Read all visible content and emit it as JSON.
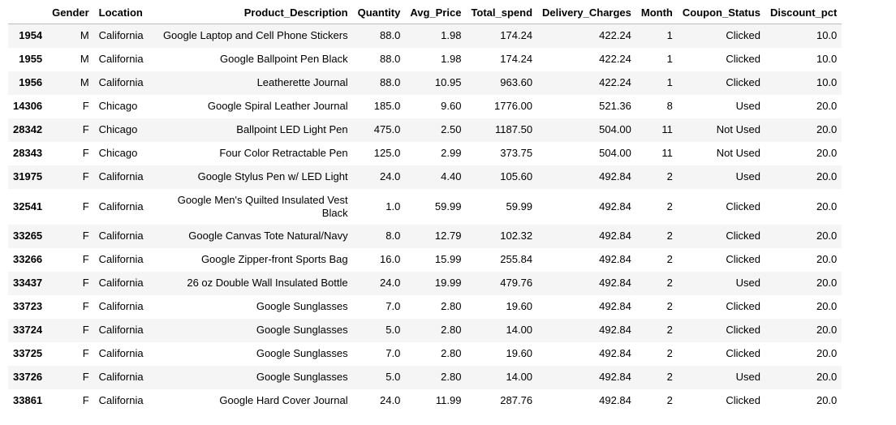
{
  "table": {
    "columns": [
      "",
      "Gender",
      "Location",
      "Product_Description",
      "Quantity",
      "Avg_Price",
      "Total_spend",
      "Delivery_Charges",
      "Month",
      "Coupon_Status",
      "Discount_pct"
    ],
    "rows": [
      {
        "index": "1954",
        "gender": "M",
        "location": "California",
        "product": "Google Laptop and Cell Phone Stickers",
        "quantity": "88.0",
        "avg_price": "1.98",
        "total_spend": "174.24",
        "delivery": "422.24",
        "month": "1",
        "coupon": "Clicked",
        "discount": "10.0"
      },
      {
        "index": "1955",
        "gender": "M",
        "location": "California",
        "product": "Google Ballpoint Pen Black",
        "quantity": "88.0",
        "avg_price": "1.98",
        "total_spend": "174.24",
        "delivery": "422.24",
        "month": "1",
        "coupon": "Clicked",
        "discount": "10.0"
      },
      {
        "index": "1956",
        "gender": "M",
        "location": "California",
        "product": "Leatherette Journal",
        "quantity": "88.0",
        "avg_price": "10.95",
        "total_spend": "963.60",
        "delivery": "422.24",
        "month": "1",
        "coupon": "Clicked",
        "discount": "10.0"
      },
      {
        "index": "14306",
        "gender": "F",
        "location": "Chicago",
        "product": "Google Spiral Leather Journal",
        "quantity": "185.0",
        "avg_price": "9.60",
        "total_spend": "1776.00",
        "delivery": "521.36",
        "month": "8",
        "coupon": "Used",
        "discount": "20.0"
      },
      {
        "index": "28342",
        "gender": "F",
        "location": "Chicago",
        "product": "Ballpoint LED Light Pen",
        "quantity": "475.0",
        "avg_price": "2.50",
        "total_spend": "1187.50",
        "delivery": "504.00",
        "month": "11",
        "coupon": "Not Used",
        "discount": "20.0"
      },
      {
        "index": "28343",
        "gender": "F",
        "location": "Chicago",
        "product": "Four Color Retractable Pen",
        "quantity": "125.0",
        "avg_price": "2.99",
        "total_spend": "373.75",
        "delivery": "504.00",
        "month": "11",
        "coupon": "Not Used",
        "discount": "20.0"
      },
      {
        "index": "31975",
        "gender": "F",
        "location": "California",
        "product": "Google Stylus Pen w/ LED Light",
        "quantity": "24.0",
        "avg_price": "4.40",
        "total_spend": "105.60",
        "delivery": "492.84",
        "month": "2",
        "coupon": "Used",
        "discount": "20.0"
      },
      {
        "index": "32541",
        "gender": "F",
        "location": "California",
        "product": "Google Men's Quilted Insulated Vest Black",
        "quantity": "1.0",
        "avg_price": "59.99",
        "total_spend": "59.99",
        "delivery": "492.84",
        "month": "2",
        "coupon": "Clicked",
        "discount": "20.0"
      },
      {
        "index": "33265",
        "gender": "F",
        "location": "California",
        "product": "Google Canvas Tote Natural/Navy",
        "quantity": "8.0",
        "avg_price": "12.79",
        "total_spend": "102.32",
        "delivery": "492.84",
        "month": "2",
        "coupon": "Clicked",
        "discount": "20.0"
      },
      {
        "index": "33266",
        "gender": "F",
        "location": "California",
        "product": "Google Zipper-front Sports Bag",
        "quantity": "16.0",
        "avg_price": "15.99",
        "total_spend": "255.84",
        "delivery": "492.84",
        "month": "2",
        "coupon": "Clicked",
        "discount": "20.0"
      },
      {
        "index": "33437",
        "gender": "F",
        "location": "California",
        "product": "26 oz Double Wall Insulated Bottle",
        "quantity": "24.0",
        "avg_price": "19.99",
        "total_spend": "479.76",
        "delivery": "492.84",
        "month": "2",
        "coupon": "Used",
        "discount": "20.0"
      },
      {
        "index": "33723",
        "gender": "F",
        "location": "California",
        "product": "Google Sunglasses",
        "quantity": "7.0",
        "avg_price": "2.80",
        "total_spend": "19.60",
        "delivery": "492.84",
        "month": "2",
        "coupon": "Clicked",
        "discount": "20.0"
      },
      {
        "index": "33724",
        "gender": "F",
        "location": "California",
        "product": "Google Sunglasses",
        "quantity": "5.0",
        "avg_price": "2.80",
        "total_spend": "14.00",
        "delivery": "492.84",
        "month": "2",
        "coupon": "Clicked",
        "discount": "20.0"
      },
      {
        "index": "33725",
        "gender": "F",
        "location": "California",
        "product": "Google Sunglasses",
        "quantity": "7.0",
        "avg_price": "2.80",
        "total_spend": "19.60",
        "delivery": "492.84",
        "month": "2",
        "coupon": "Clicked",
        "discount": "20.0"
      },
      {
        "index": "33726",
        "gender": "F",
        "location": "California",
        "product": "Google Sunglasses",
        "quantity": "5.0",
        "avg_price": "2.80",
        "total_spend": "14.00",
        "delivery": "492.84",
        "month": "2",
        "coupon": "Used",
        "discount": "20.0"
      },
      {
        "index": "33861",
        "gender": "F",
        "location": "California",
        "product": "Google Hard Cover Journal",
        "quantity": "24.0",
        "avg_price": "11.99",
        "total_spend": "287.76",
        "delivery": "492.84",
        "month": "2",
        "coupon": "Clicked",
        "discount": "20.0"
      }
    ]
  },
  "colors": {
    "stripe": "#f5f5f5",
    "header_border": "#bdbdbd",
    "text": "#000000"
  }
}
